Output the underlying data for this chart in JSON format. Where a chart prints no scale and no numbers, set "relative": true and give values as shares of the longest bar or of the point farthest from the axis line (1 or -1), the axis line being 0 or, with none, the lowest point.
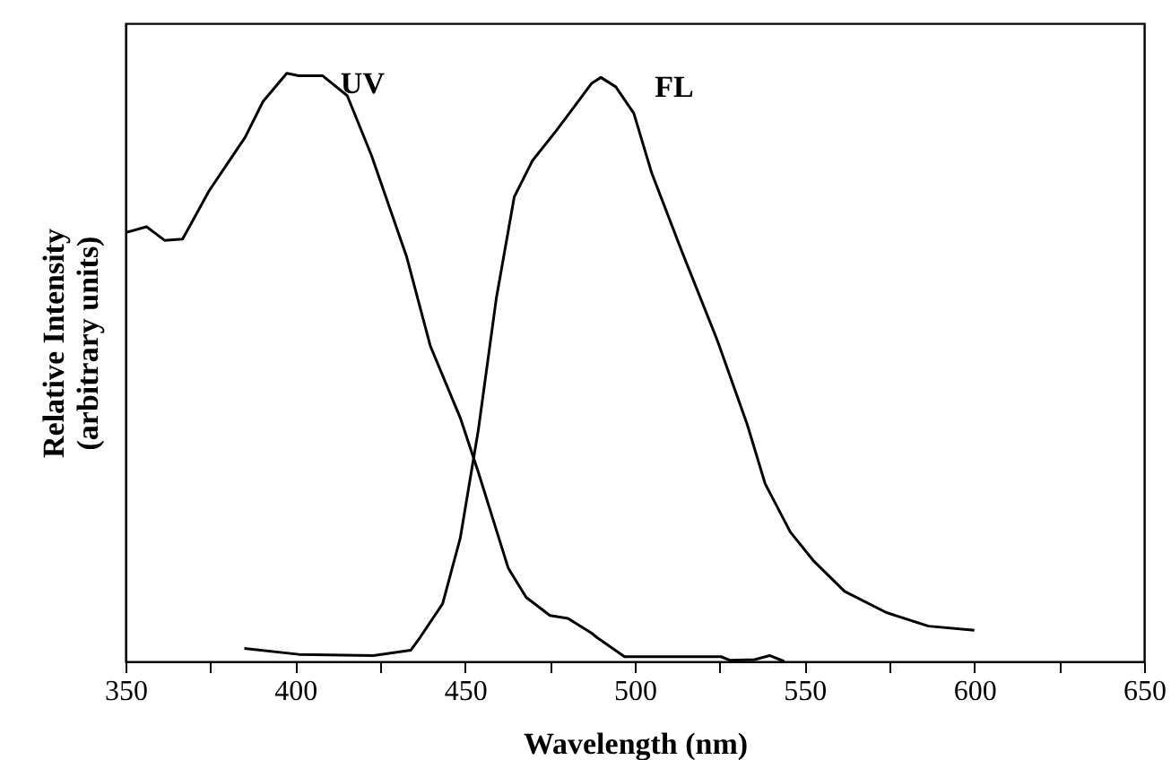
{
  "chart_data": {
    "type": "line",
    "relative": true,
    "xlabel": "Wavelength (nm)",
    "ylabel": "Relative Intensity\n(arbitrary units)",
    "xlim": [
      350,
      650
    ],
    "xticks": [
      350,
      {
        "value": 375,
        "label": null
      },
      400,
      {
        "value": 425,
        "label": null
      },
      450,
      {
        "value": 475,
        "label": null
      },
      500,
      {
        "value": 525,
        "label": null
      },
      550,
      {
        "value": 575,
        "label": null
      },
      600,
      {
        "value": 625,
        "label": null
      },
      650
    ],
    "grid": false,
    "marker": "none",
    "line_style": "solid",
    "series": [
      {
        "name": "UV",
        "color": "#000000",
        "x": [
          350,
          356.2,
          361.5,
          366.8,
          374.6,
          385.2,
          390.5,
          397.5,
          401,
          408,
          415.3,
          422.4,
          432.8,
          439.8,
          448.6,
          453.9,
          462.7,
          468,
          475,
          480.3,
          487.3,
          489,
          497,
          525.4,
          528,
          535.3,
          539.7,
          544
        ],
        "values": [
          0.729,
          0.739,
          0.716,
          0.718,
          0.8,
          0.891,
          0.952,
          1.0,
          0.996,
          0.996,
          0.962,
          0.861,
          0.688,
          0.536,
          0.414,
          0.322,
          0.159,
          0.109,
          0.078,
          0.073,
          0.048,
          0.04,
          0.008,
          0.008,
          0.002,
          0.003,
          0.01,
          0.0
        ]
      },
      {
        "name": "FL",
        "color": "#000000",
        "x": [
          385,
          401,
          423,
          434,
          436.3,
          443.4,
          448.6,
          453.9,
          459.2,
          464.5,
          469.8,
          476.8,
          482,
          487.3,
          490,
          494.4,
          499.7,
          505,
          513.8,
          524.3,
          533.1,
          538.4,
          545.8,
          552.8,
          561.8,
          574.1,
          586.5,
          600
        ],
        "values": [
          0.022,
          0.012,
          0.01,
          0.019,
          0.037,
          0.098,
          0.21,
          0.393,
          0.617,
          0.79,
          0.851,
          0.902,
          0.942,
          0.983,
          0.993,
          0.977,
          0.932,
          0.83,
          0.698,
          0.546,
          0.403,
          0.302,
          0.22,
          0.17,
          0.119,
          0.083,
          0.06,
          0.053
        ]
      }
    ]
  }
}
